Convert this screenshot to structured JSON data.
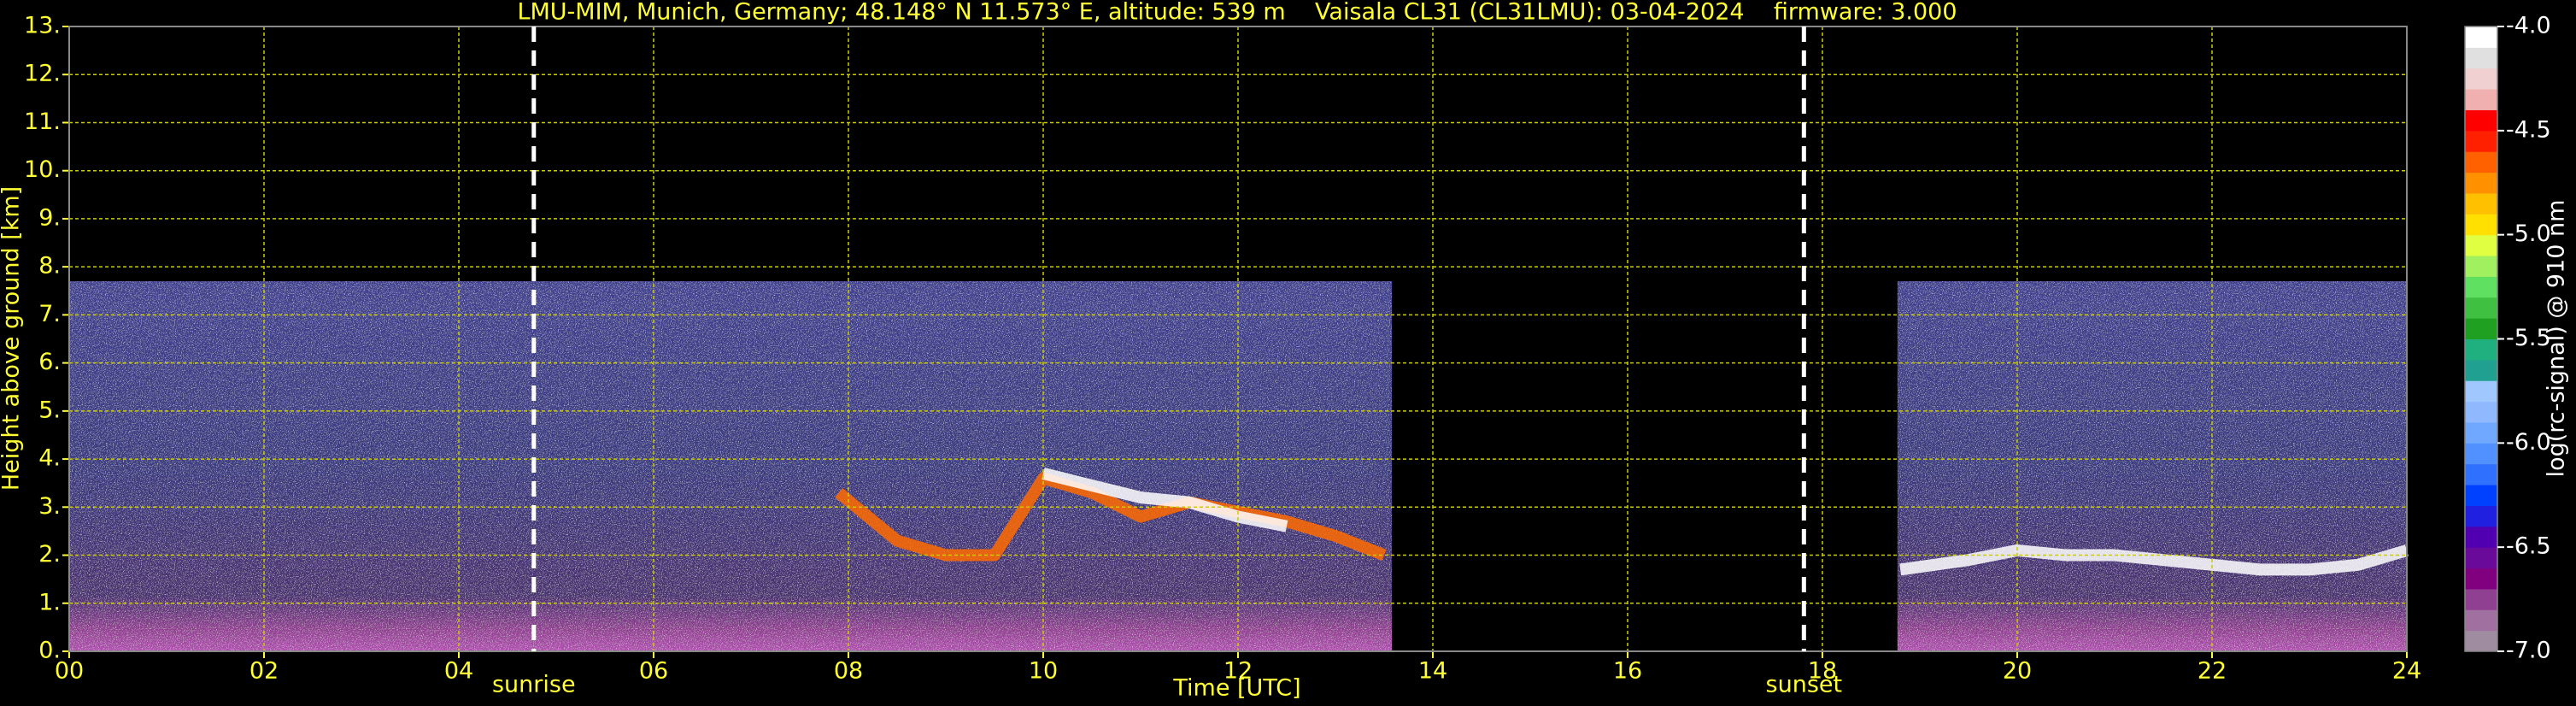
{
  "chart_data": {
    "type": "heatmap",
    "title": "LMU-MIM, Munich, Germany; 48.148° N 11.573° E, altitude: 539 m    Vaisala CL31 (CL31LMU): 03-04-2024    firmware: 3.000",
    "xlabel": "Time [UTC]",
    "ylabel": "Height above ground [km]",
    "colorbar_label": "log(rc-signal) @ 910 nm",
    "xlim": [
      0,
      24
    ],
    "xticks": [
      {
        "value": 0,
        "label": "00"
      },
      {
        "value": 2,
        "label": "02"
      },
      {
        "value": 4,
        "label": "04"
      },
      {
        "value": 6,
        "label": "06"
      },
      {
        "value": 8,
        "label": "08"
      },
      {
        "value": 10,
        "label": "10"
      },
      {
        "value": 12,
        "label": "12"
      },
      {
        "value": 14,
        "label": "14"
      },
      {
        "value": 16,
        "label": "16"
      },
      {
        "value": 18,
        "label": "18"
      },
      {
        "value": 20,
        "label": "20"
      },
      {
        "value": 22,
        "label": "22"
      },
      {
        "value": 24,
        "label": "24"
      }
    ],
    "ylim": [
      0,
      13
    ],
    "yticks": [
      {
        "value": 0,
        "label": "0."
      },
      {
        "value": 1,
        "label": "1."
      },
      {
        "value": 2,
        "label": "2."
      },
      {
        "value": 3,
        "label": "3."
      },
      {
        "value": 4,
        "label": "4."
      },
      {
        "value": 5,
        "label": "5."
      },
      {
        "value": 6,
        "label": "6."
      },
      {
        "value": 7,
        "label": "7."
      },
      {
        "value": 8,
        "label": "8."
      },
      {
        "value": 9,
        "label": "9."
      },
      {
        "value": 10,
        "label": "10."
      },
      {
        "value": 11,
        "label": "11."
      },
      {
        "value": 12,
        "label": "12."
      },
      {
        "value": 13,
        "label": "13."
      }
    ],
    "clim": [
      -7,
      -4
    ],
    "cticks": [
      {
        "value": -4,
        "label": "-4.0"
      },
      {
        "value": -4.5,
        "label": "-4.5"
      },
      {
        "value": -5,
        "label": "-5.0"
      },
      {
        "value": -5.5,
        "label": "-5.5"
      },
      {
        "value": -6,
        "label": "-6.0"
      },
      {
        "value": -6.5,
        "label": "-6.5"
      },
      {
        "value": -7,
        "label": "-7.0"
      }
    ],
    "colormap": [
      "#a08ca0",
      "#a070a0",
      "#904090",
      "#800080",
      "#6a0a9a",
      "#5000b0",
      "#2020e0",
      "#0040ff",
      "#3070ff",
      "#5090ff",
      "#70a8ff",
      "#90b8ff",
      "#a0c8ff",
      "#20a090",
      "#20b080",
      "#20a020",
      "#40c040",
      "#60e060",
      "#a0f060",
      "#e0ff40",
      "#ffe000",
      "#ffc000",
      "#ff9000",
      "#ff6000",
      "#ff2000",
      "#ff0000",
      "#f0b0b0",
      "#f0d0d0",
      "#e0e0e0",
      "#ffffff"
    ],
    "grid": true,
    "segments": [
      {
        "x0": 0,
        "x1": 13.58,
        "top": 7.7
      },
      {
        "x0": 18.77,
        "x1": 24,
        "top": 7.7
      }
    ],
    "markers": [
      {
        "label": "sunrise",
        "x": 4.77
      },
      {
        "label": "sunset",
        "x": 17.81
      }
    ],
    "series": [
      {
        "color": "#ff6a00",
        "x": [
          7.9,
          8.5,
          9.0,
          9.5,
          10.0,
          10.5,
          11.0,
          11.5,
          12.0,
          12.5,
          13.0,
          13.5
        ],
        "values": [
          3.3,
          2.3,
          2.0,
          2.0,
          3.6,
          3.3,
          2.8,
          3.1,
          2.9,
          2.7,
          2.4,
          2.0
        ]
      },
      {
        "color": "#ffffff",
        "x": [
          10.0,
          11.0,
          11.5,
          12.0,
          12.5
        ],
        "values": [
          3.7,
          3.2,
          3.1,
          2.8,
          2.6
        ]
      },
      {
        "color": "#ffffff",
        "x": [
          18.8,
          19.5,
          20.0,
          20.5,
          21.0,
          21.5,
          22.0,
          22.5,
          23.0,
          23.5,
          24.0
        ],
        "values": [
          1.7,
          1.9,
          2.1,
          2.0,
          2.0,
          1.9,
          1.8,
          1.7,
          1.7,
          1.8,
          2.1
        ]
      }
    ]
  }
}
